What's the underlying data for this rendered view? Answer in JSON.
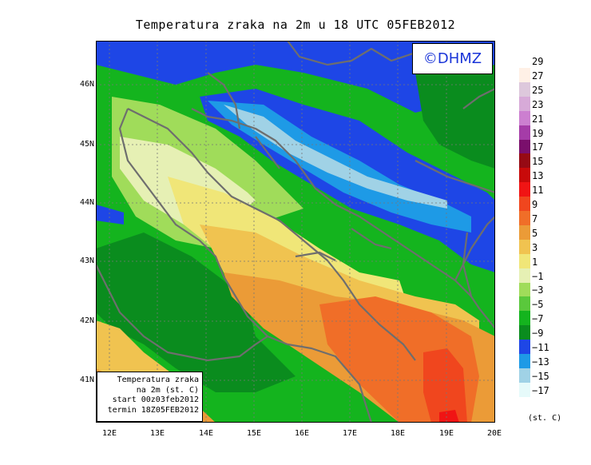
{
  "title": "Temperatura zraka na 2m u 18 UTC 05FEB2012",
  "logo": "©DHMZ",
  "info_box": {
    "line1": "Temperatura zraka",
    "line2": "na 2m (st. C)",
    "line3": "start 00z03feb2012",
    "line4": "termin 18Z05FEB2012"
  },
  "lat_labels": [
    "46N",
    "45N",
    "44N",
    "43N",
    "42N",
    "41N"
  ],
  "lon_labels": [
    "12E",
    "13E",
    "14E",
    "15E",
    "16E",
    "17E",
    "18E",
    "19E",
    "20E"
  ],
  "legend": {
    "unit": "(st. C)",
    "entries": [
      {
        "label": "29",
        "color": "#fff0e6"
      },
      {
        "label": "27",
        "color": "#ddc8dc"
      },
      {
        "label": "25",
        "color": "#d7aad8"
      },
      {
        "label": "23",
        "color": "#cc7fd0"
      },
      {
        "label": "21",
        "color": "#a53ca8"
      },
      {
        "label": "19",
        "color": "#7a0f6c"
      },
      {
        "label": "17",
        "color": "#960a14"
      },
      {
        "label": "15",
        "color": "#c80a0a"
      },
      {
        "label": "13",
        "color": "#f01414"
      },
      {
        "label": "11",
        "color": "#f0461e"
      },
      {
        "label": "9",
        "color": "#f06e28"
      },
      {
        "label": "7",
        "color": "#eb9b37"
      },
      {
        "label": "5",
        "color": "#f0c350"
      },
      {
        "label": "3",
        "color": "#f0e678"
      },
      {
        "label": "1",
        "color": "#e6f0b4"
      },
      {
        "label": "−1",
        "color": "#a0dc5a"
      },
      {
        "label": "−3",
        "color": "#5ac83c"
      },
      {
        "label": "−5",
        "color": "#14b41e"
      },
      {
        "label": "−7",
        "color": "#0a8c1e"
      },
      {
        "label": "−9",
        "color": "#1e46e6"
      },
      {
        "label": "−11",
        "color": "#1e9ae6"
      },
      {
        "label": "−13",
        "color": "#a0d2e6"
      },
      {
        "label": "−15",
        "color": "#e6fafa"
      },
      {
        "label": "−17",
        "color": ""
      }
    ]
  },
  "map_colors": {
    "cold_blue": "#1e46e6",
    "light_blue": "#1e9ae6",
    "pale_blue": "#a0d2e6",
    "dark_green": "#0a8c1e",
    "green": "#14b41e",
    "mid_green": "#5ac83c",
    "light_green": "#a0dc5a",
    "pale_yellow": "#e6f0b4",
    "yellow": "#f0e678",
    "gold": "#f0c350",
    "orange": "#eb9b37",
    "dark_orange": "#f06e28",
    "red_orange": "#f0461e",
    "red": "#f01414",
    "coastline": "#6e6e6e"
  }
}
